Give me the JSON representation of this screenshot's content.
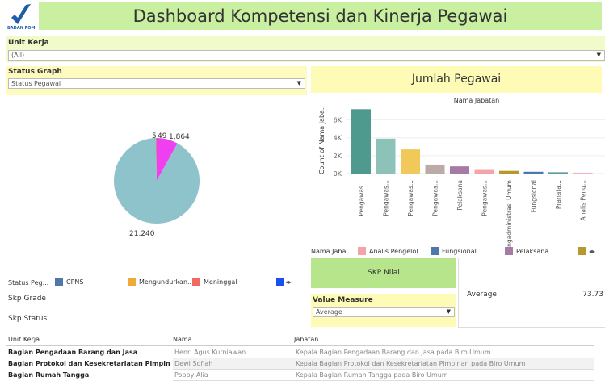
{
  "header": {
    "title": "Dashboard Kompetensi dan Kinerja Pegawai",
    "logo_text": "BADAN POM"
  },
  "filters": {
    "unit_kerja": {
      "label": "Unit Kerja",
      "value": "(All)"
    },
    "status_graph": {
      "label": "Status Graph",
      "value": "Status Pegawai"
    },
    "value_measure": {
      "label": "Value Measure",
      "value": "Average"
    }
  },
  "panel_title": "Jumlah Pegawai",
  "skp_button": "SKP Nilai",
  "skp_labels": [
    "Skp Grade",
    "Skp Status"
  ],
  "average": {
    "label": "Average",
    "value": "73.73"
  },
  "chart_data": [
    {
      "type": "pie",
      "values": [
        1864,
        21240,
        5,
        49
      ],
      "value_labels": [
        "1,864",
        "21,240",
        "5",
        "49"
      ],
      "colors": [
        "#f03ff0",
        "#8fc3cb",
        "#f28e2b",
        "#e15759"
      ],
      "legend_title": "Status Peg...",
      "legend": [
        {
          "label": "CPNS",
          "color": "#4e79a7"
        },
        {
          "label": "Mengundurkan...",
          "color": "#f2a93b"
        },
        {
          "label": "Meninggal",
          "color": "#ee6b61"
        },
        {
          "color": "#1a4ff0"
        }
      ]
    },
    {
      "type": "bar",
      "title": "Nama Jabatan",
      "y_label": "Count of Nama Jaba..",
      "categories": [
        "Pengawas...",
        "Pengawas...",
        "Pengawas...",
        "Pengawas...",
        "Pelaksana",
        "Pengawas...",
        "Pengadministrasi Umum",
        "Fungsional",
        "Pranata...",
        "Analis Peng..."
      ],
      "values": [
        7200,
        3900,
        2700,
        1000,
        800,
        400,
        300,
        200,
        150,
        100
      ],
      "colors": [
        "#4e9a8f",
        "#8cc2b8",
        "#f0c95a",
        "#bcaaa6",
        "#a67ba3",
        "#f4a3a8",
        "#b8972e",
        "#4e79a7",
        "#5f9f9f",
        "#f5b5c0"
      ],
      "ylim": [
        0,
        7500
      ],
      "yticks": [
        {
          "value": 0,
          "label": "0K"
        },
        {
          "value": 2000,
          "label": "2K"
        },
        {
          "value": 4000,
          "label": "4K"
        },
        {
          "value": 6000,
          "label": "6K"
        }
      ],
      "legend_title": "Nama Jaba...",
      "legend": [
        {
          "label": "Analis Pengelol...",
          "color": "#f4a3a8"
        },
        {
          "label": "Fungsional",
          "color": "#4e79a7"
        },
        {
          "label": "Pelaksana",
          "color": "#a67ba3"
        },
        {
          "color": "#b8972e"
        }
      ]
    }
  ],
  "table": {
    "columns": [
      "Unit Kerja",
      "Nama",
      "Jabatan"
    ],
    "rows": [
      [
        "Bagian Pengadaan Barang dan Jasa",
        "Henri Agus Kurniawan",
        "Kepala Bagian Pengadaan Barang dan Jasa pada Biro Umum"
      ],
      [
        "Bagian Protokol dan Kesekretariatan Pimpin..",
        "Dewi Sofiah",
        "Kepala Bagian Protokol dan Kesekretariatan Pimpinan pada Biro Umum"
      ],
      [
        "Bagian Rumah Tangga",
        "Poppy Alia",
        "Kepala Bagian Rumah Tangga pada Biro Umum"
      ]
    ]
  }
}
